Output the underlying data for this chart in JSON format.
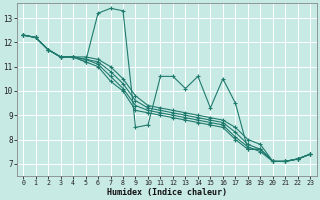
{
  "xlabel": "Humidex (Indice chaleur)",
  "xlim": [
    -0.5,
    23.5
  ],
  "ylim": [
    6.5,
    13.6
  ],
  "yticks": [
    7,
    8,
    9,
    10,
    11,
    12,
    13
  ],
  "xticks": [
    0,
    1,
    2,
    3,
    4,
    5,
    6,
    7,
    8,
    9,
    10,
    11,
    12,
    13,
    14,
    15,
    16,
    17,
    18,
    19,
    20,
    21,
    22,
    23
  ],
  "bg_color": "#c8eae4",
  "grid_color": "#ffffff",
  "line_color": "#1f7a6e",
  "lines": [
    [
      12.3,
      12.2,
      11.7,
      11.4,
      11.4,
      11.2,
      13.2,
      13.4,
      13.3,
      8.5,
      8.6,
      10.6,
      10.6,
      10.1,
      10.6,
      9.3,
      10.5,
      9.5,
      7.6,
      7.6,
      7.1,
      7.1,
      7.2,
      7.4
    ],
    [
      12.3,
      12.2,
      11.7,
      11.4,
      11.4,
      11.4,
      11.3,
      11.0,
      10.5,
      9.8,
      9.4,
      9.3,
      9.2,
      9.1,
      9.0,
      8.9,
      8.8,
      8.5,
      8.0,
      7.8,
      7.1,
      7.1,
      7.2,
      7.4
    ],
    [
      12.3,
      12.2,
      11.7,
      11.4,
      11.4,
      11.3,
      11.2,
      10.8,
      10.3,
      9.6,
      9.3,
      9.2,
      9.1,
      9.0,
      8.9,
      8.8,
      8.7,
      8.3,
      7.8,
      7.6,
      7.1,
      7.1,
      7.2,
      7.4
    ],
    [
      12.3,
      12.2,
      11.7,
      11.4,
      11.4,
      11.3,
      11.1,
      10.6,
      10.1,
      9.4,
      9.2,
      9.1,
      9.0,
      8.9,
      8.8,
      8.7,
      8.6,
      8.1,
      7.7,
      7.5,
      7.1,
      7.1,
      7.2,
      7.4
    ],
    [
      12.3,
      12.2,
      11.7,
      11.4,
      11.4,
      11.2,
      11.0,
      10.4,
      10.0,
      9.2,
      9.1,
      9.0,
      8.9,
      8.8,
      8.7,
      8.6,
      8.5,
      8.0,
      7.6,
      7.6,
      7.1,
      7.1,
      7.2,
      7.4
    ]
  ]
}
